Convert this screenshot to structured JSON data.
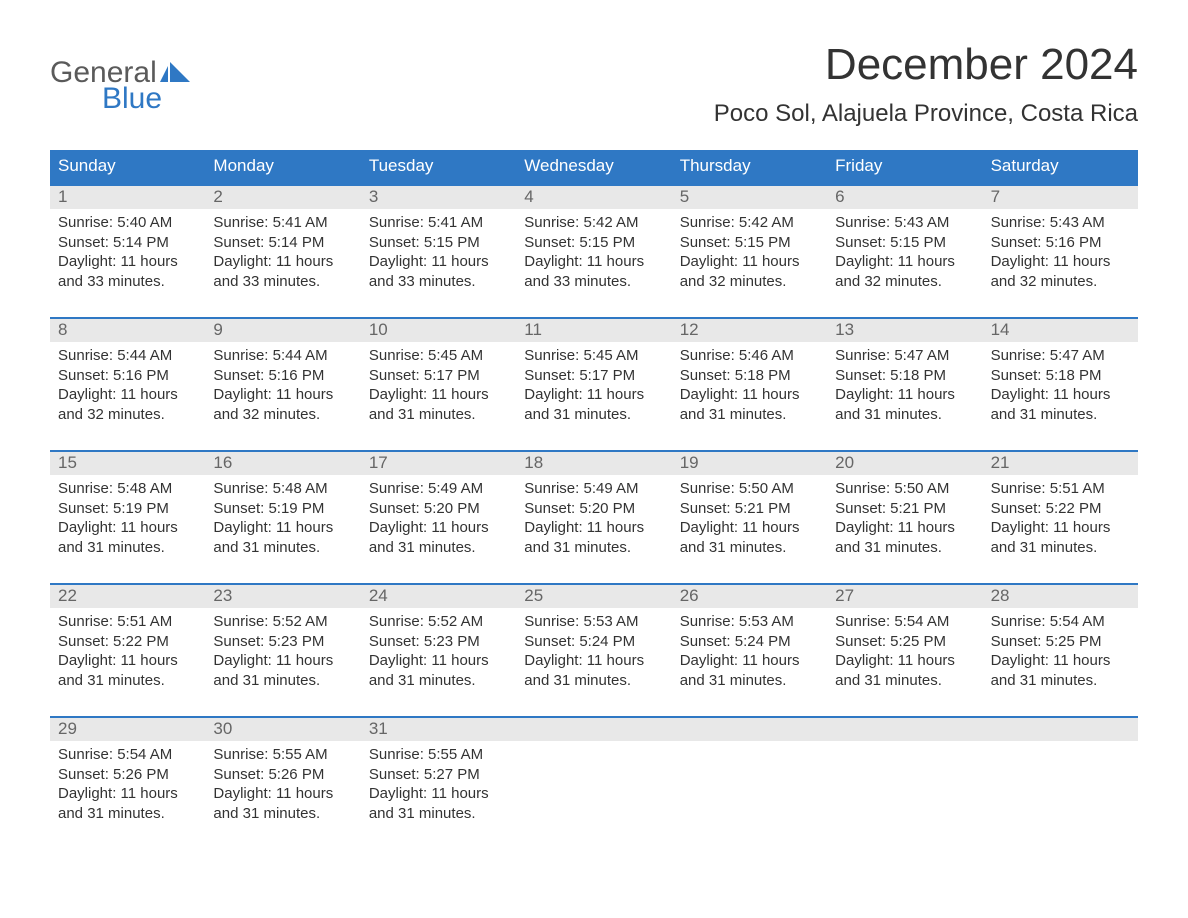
{
  "logo": {
    "word1": "General",
    "word2": "Blue"
  },
  "title": "December 2024",
  "location": "Poco Sol, Alajuela Province, Costa Rica",
  "colors": {
    "header_bg": "#2f78c4",
    "header_text": "#ffffff",
    "daynum_bg": "#e8e8e8",
    "daynum_text": "#666666",
    "body_text": "#333333",
    "logo_gray": "#5a5a5a",
    "logo_blue": "#2f78c4"
  },
  "day_headers": [
    "Sunday",
    "Monday",
    "Tuesday",
    "Wednesday",
    "Thursday",
    "Friday",
    "Saturday"
  ],
  "weeks": [
    {
      "days": [
        {
          "num": "1",
          "sunrise": "Sunrise: 5:40 AM",
          "sunset": "Sunset: 5:14 PM",
          "dl1": "Daylight: 11 hours",
          "dl2": "and 33 minutes."
        },
        {
          "num": "2",
          "sunrise": "Sunrise: 5:41 AM",
          "sunset": "Sunset: 5:14 PM",
          "dl1": "Daylight: 11 hours",
          "dl2": "and 33 minutes."
        },
        {
          "num": "3",
          "sunrise": "Sunrise: 5:41 AM",
          "sunset": "Sunset: 5:15 PM",
          "dl1": "Daylight: 11 hours",
          "dl2": "and 33 minutes."
        },
        {
          "num": "4",
          "sunrise": "Sunrise: 5:42 AM",
          "sunset": "Sunset: 5:15 PM",
          "dl1": "Daylight: 11 hours",
          "dl2": "and 33 minutes."
        },
        {
          "num": "5",
          "sunrise": "Sunrise: 5:42 AM",
          "sunset": "Sunset: 5:15 PM",
          "dl1": "Daylight: 11 hours",
          "dl2": "and 32 minutes."
        },
        {
          "num": "6",
          "sunrise": "Sunrise: 5:43 AM",
          "sunset": "Sunset: 5:15 PM",
          "dl1": "Daylight: 11 hours",
          "dl2": "and 32 minutes."
        },
        {
          "num": "7",
          "sunrise": "Sunrise: 5:43 AM",
          "sunset": "Sunset: 5:16 PM",
          "dl1": "Daylight: 11 hours",
          "dl2": "and 32 minutes."
        }
      ]
    },
    {
      "days": [
        {
          "num": "8",
          "sunrise": "Sunrise: 5:44 AM",
          "sunset": "Sunset: 5:16 PM",
          "dl1": "Daylight: 11 hours",
          "dl2": "and 32 minutes."
        },
        {
          "num": "9",
          "sunrise": "Sunrise: 5:44 AM",
          "sunset": "Sunset: 5:16 PM",
          "dl1": "Daylight: 11 hours",
          "dl2": "and 32 minutes."
        },
        {
          "num": "10",
          "sunrise": "Sunrise: 5:45 AM",
          "sunset": "Sunset: 5:17 PM",
          "dl1": "Daylight: 11 hours",
          "dl2": "and 31 minutes."
        },
        {
          "num": "11",
          "sunrise": "Sunrise: 5:45 AM",
          "sunset": "Sunset: 5:17 PM",
          "dl1": "Daylight: 11 hours",
          "dl2": "and 31 minutes."
        },
        {
          "num": "12",
          "sunrise": "Sunrise: 5:46 AM",
          "sunset": "Sunset: 5:18 PM",
          "dl1": "Daylight: 11 hours",
          "dl2": "and 31 minutes."
        },
        {
          "num": "13",
          "sunrise": "Sunrise: 5:47 AM",
          "sunset": "Sunset: 5:18 PM",
          "dl1": "Daylight: 11 hours",
          "dl2": "and 31 minutes."
        },
        {
          "num": "14",
          "sunrise": "Sunrise: 5:47 AM",
          "sunset": "Sunset: 5:18 PM",
          "dl1": "Daylight: 11 hours",
          "dl2": "and 31 minutes."
        }
      ]
    },
    {
      "days": [
        {
          "num": "15",
          "sunrise": "Sunrise: 5:48 AM",
          "sunset": "Sunset: 5:19 PM",
          "dl1": "Daylight: 11 hours",
          "dl2": "and 31 minutes."
        },
        {
          "num": "16",
          "sunrise": "Sunrise: 5:48 AM",
          "sunset": "Sunset: 5:19 PM",
          "dl1": "Daylight: 11 hours",
          "dl2": "and 31 minutes."
        },
        {
          "num": "17",
          "sunrise": "Sunrise: 5:49 AM",
          "sunset": "Sunset: 5:20 PM",
          "dl1": "Daylight: 11 hours",
          "dl2": "and 31 minutes."
        },
        {
          "num": "18",
          "sunrise": "Sunrise: 5:49 AM",
          "sunset": "Sunset: 5:20 PM",
          "dl1": "Daylight: 11 hours",
          "dl2": "and 31 minutes."
        },
        {
          "num": "19",
          "sunrise": "Sunrise: 5:50 AM",
          "sunset": "Sunset: 5:21 PM",
          "dl1": "Daylight: 11 hours",
          "dl2": "and 31 minutes."
        },
        {
          "num": "20",
          "sunrise": "Sunrise: 5:50 AM",
          "sunset": "Sunset: 5:21 PM",
          "dl1": "Daylight: 11 hours",
          "dl2": "and 31 minutes."
        },
        {
          "num": "21",
          "sunrise": "Sunrise: 5:51 AM",
          "sunset": "Sunset: 5:22 PM",
          "dl1": "Daylight: 11 hours",
          "dl2": "and 31 minutes."
        }
      ]
    },
    {
      "days": [
        {
          "num": "22",
          "sunrise": "Sunrise: 5:51 AM",
          "sunset": "Sunset: 5:22 PM",
          "dl1": "Daylight: 11 hours",
          "dl2": "and 31 minutes."
        },
        {
          "num": "23",
          "sunrise": "Sunrise: 5:52 AM",
          "sunset": "Sunset: 5:23 PM",
          "dl1": "Daylight: 11 hours",
          "dl2": "and 31 minutes."
        },
        {
          "num": "24",
          "sunrise": "Sunrise: 5:52 AM",
          "sunset": "Sunset: 5:23 PM",
          "dl1": "Daylight: 11 hours",
          "dl2": "and 31 minutes."
        },
        {
          "num": "25",
          "sunrise": "Sunrise: 5:53 AM",
          "sunset": "Sunset: 5:24 PM",
          "dl1": "Daylight: 11 hours",
          "dl2": "and 31 minutes."
        },
        {
          "num": "26",
          "sunrise": "Sunrise: 5:53 AM",
          "sunset": "Sunset: 5:24 PM",
          "dl1": "Daylight: 11 hours",
          "dl2": "and 31 minutes."
        },
        {
          "num": "27",
          "sunrise": "Sunrise: 5:54 AM",
          "sunset": "Sunset: 5:25 PM",
          "dl1": "Daylight: 11 hours",
          "dl2": "and 31 minutes."
        },
        {
          "num": "28",
          "sunrise": "Sunrise: 5:54 AM",
          "sunset": "Sunset: 5:25 PM",
          "dl1": "Daylight: 11 hours",
          "dl2": "and 31 minutes."
        }
      ]
    },
    {
      "days": [
        {
          "num": "29",
          "sunrise": "Sunrise: 5:54 AM",
          "sunset": "Sunset: 5:26 PM",
          "dl1": "Daylight: 11 hours",
          "dl2": "and 31 minutes."
        },
        {
          "num": "30",
          "sunrise": "Sunrise: 5:55 AM",
          "sunset": "Sunset: 5:26 PM",
          "dl1": "Daylight: 11 hours",
          "dl2": "and 31 minutes."
        },
        {
          "num": "31",
          "sunrise": "Sunrise: 5:55 AM",
          "sunset": "Sunset: 5:27 PM",
          "dl1": "Daylight: 11 hours",
          "dl2": "and 31 minutes."
        },
        {
          "empty": true
        },
        {
          "empty": true
        },
        {
          "empty": true
        },
        {
          "empty": true
        }
      ]
    }
  ]
}
